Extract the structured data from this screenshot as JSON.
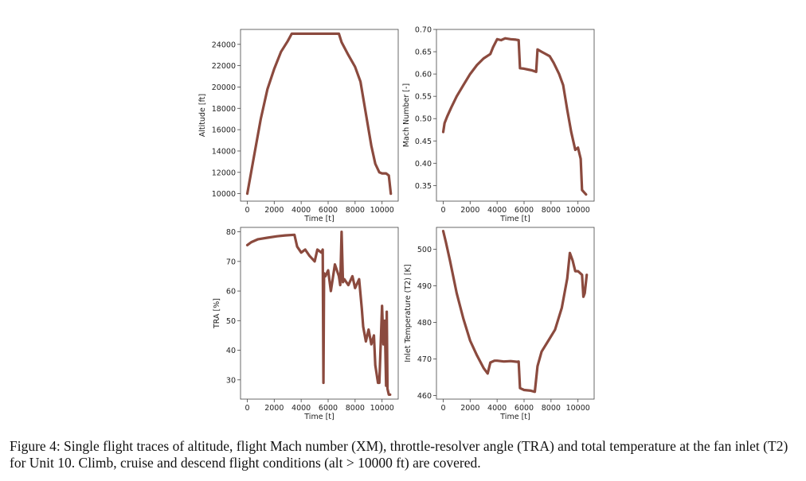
{
  "caption": "Figure 4: Single flight traces of altitude, flight Mach number (XM), throttle-resolver angle (TRA) and total temperature at the fan inlet (T2) for Unit 10. Climb, cruise and descend flight conditions (alt > 10000 ft) are covered.",
  "line_color": "#8b4a3e",
  "chart_data": [
    {
      "type": "line",
      "title": "",
      "xlabel": "Time [t]",
      "ylabel": "Altitude [ft]",
      "xlim": [
        -500,
        11200
      ],
      "ylim": [
        9300,
        25400
      ],
      "xticks": [
        0,
        2000,
        4000,
        6000,
        8000,
        10000
      ],
      "yticks": [
        10000,
        12000,
        14000,
        16000,
        18000,
        20000,
        22000,
        24000
      ],
      "x": [
        0,
        500,
        1000,
        1500,
        2000,
        2500,
        3000,
        3300,
        3500,
        4000,
        5000,
        6000,
        6800,
        7000,
        7500,
        8000,
        8400,
        8800,
        9200,
        9500,
        9800,
        10000,
        10300,
        10500,
        10650
      ],
      "y": [
        10000,
        13500,
        17000,
        19800,
        21700,
        23300,
        24300,
        25000,
        25000,
        25000,
        25000,
        25000,
        25000,
        24200,
        23000,
        21900,
        20500,
        17500,
        14500,
        12800,
        12000,
        11900,
        11900,
        11700,
        10000
      ]
    },
    {
      "type": "line",
      "title": "",
      "xlabel": "Time [t]",
      "ylabel": "Mach Number [-]",
      "xlim": [
        -500,
        11200
      ],
      "ylim": [
        0.315,
        0.7
      ],
      "xticks": [
        0,
        2000,
        4000,
        6000,
        8000,
        10000
      ],
      "yticks": [
        0.35,
        0.4,
        0.45,
        0.5,
        0.55,
        0.6,
        0.65,
        0.7
      ],
      "x": [
        0,
        100,
        300,
        600,
        1000,
        1500,
        2000,
        2500,
        3000,
        3500,
        3700,
        4000,
        4300,
        4600,
        5000,
        5400,
        5600,
        5700,
        6000,
        6300,
        6600,
        6900,
        7000,
        7300,
        7600,
        7900,
        8200,
        8600,
        8900,
        9200,
        9500,
        9800,
        10000,
        10200,
        10300,
        10450,
        10600
      ],
      "y": [
        0.47,
        0.49,
        0.505,
        0.525,
        0.55,
        0.575,
        0.6,
        0.62,
        0.635,
        0.645,
        0.66,
        0.678,
        0.676,
        0.68,
        0.678,
        0.677,
        0.676,
        0.613,
        0.612,
        0.61,
        0.608,
        0.605,
        0.655,
        0.65,
        0.645,
        0.64,
        0.625,
        0.6,
        0.575,
        0.52,
        0.47,
        0.43,
        0.435,
        0.41,
        0.34,
        0.335,
        0.33
      ]
    },
    {
      "type": "line",
      "title": "",
      "xlabel": "Time [t]",
      "ylabel": "TRA [%]",
      "xlim": [
        -500,
        11200
      ],
      "ylim": [
        23.5,
        81.5
      ],
      "xticks": [
        0,
        2000,
        4000,
        6000,
        8000,
        10000
      ],
      "yticks": [
        30,
        40,
        50,
        60,
        70,
        80
      ],
      "x": [
        0,
        300,
        800,
        1500,
        2200,
        2800,
        3500,
        3700,
        4000,
        4300,
        4600,
        5000,
        5200,
        5500,
        5600,
        5650,
        5700,
        5800,
        6000,
        6200,
        6500,
        6800,
        6900,
        7000,
        7100,
        7200,
        7500,
        7800,
        8000,
        8300,
        8500,
        8600,
        8800,
        9000,
        9200,
        9400,
        9500,
        9700,
        9800,
        10000,
        10100,
        10200,
        10300,
        10350,
        10400,
        10500,
        10600
      ],
      "y": [
        75.5,
        76.5,
        77.5,
        78,
        78.5,
        78.8,
        79,
        75,
        73,
        74,
        72,
        70,
        74,
        73,
        74,
        29,
        66,
        65,
        67,
        60,
        69,
        65,
        62,
        80,
        63,
        64,
        62,
        65,
        61,
        64,
        54,
        48,
        43,
        47,
        42,
        45,
        35,
        29,
        29,
        55,
        42,
        50,
        28,
        53,
        27,
        25,
        25
      ]
    },
    {
      "type": "line",
      "title": "",
      "xlabel": "Time [t]",
      "ylabel": "Inlet Temperature (T2) [K]",
      "xlim": [
        -500,
        11200
      ],
      "ylim": [
        459,
        506
      ],
      "xticks": [
        0,
        2000,
        4000,
        6000,
        8000,
        10000
      ],
      "yticks": [
        460,
        470,
        480,
        490,
        500
      ],
      "x": [
        0,
        200,
        500,
        1000,
        1500,
        2000,
        2500,
        3000,
        3300,
        3500,
        3800,
        4000,
        4500,
        5000,
        5500,
        5600,
        5700,
        6000,
        6500,
        6800,
        7000,
        7300,
        7800,
        8300,
        8800,
        9200,
        9400,
        9600,
        9800,
        10000,
        10300,
        10400,
        10500,
        10650
      ],
      "y": [
        505,
        502,
        497,
        488,
        481,
        475,
        471,
        467.5,
        466,
        469,
        469.5,
        469.5,
        469.3,
        469.4,
        469.2,
        469.3,
        462,
        461.5,
        461.3,
        461,
        468,
        472,
        475,
        478,
        484,
        492,
        499,
        497,
        494,
        494,
        493,
        487,
        488,
        493
      ]
    }
  ]
}
